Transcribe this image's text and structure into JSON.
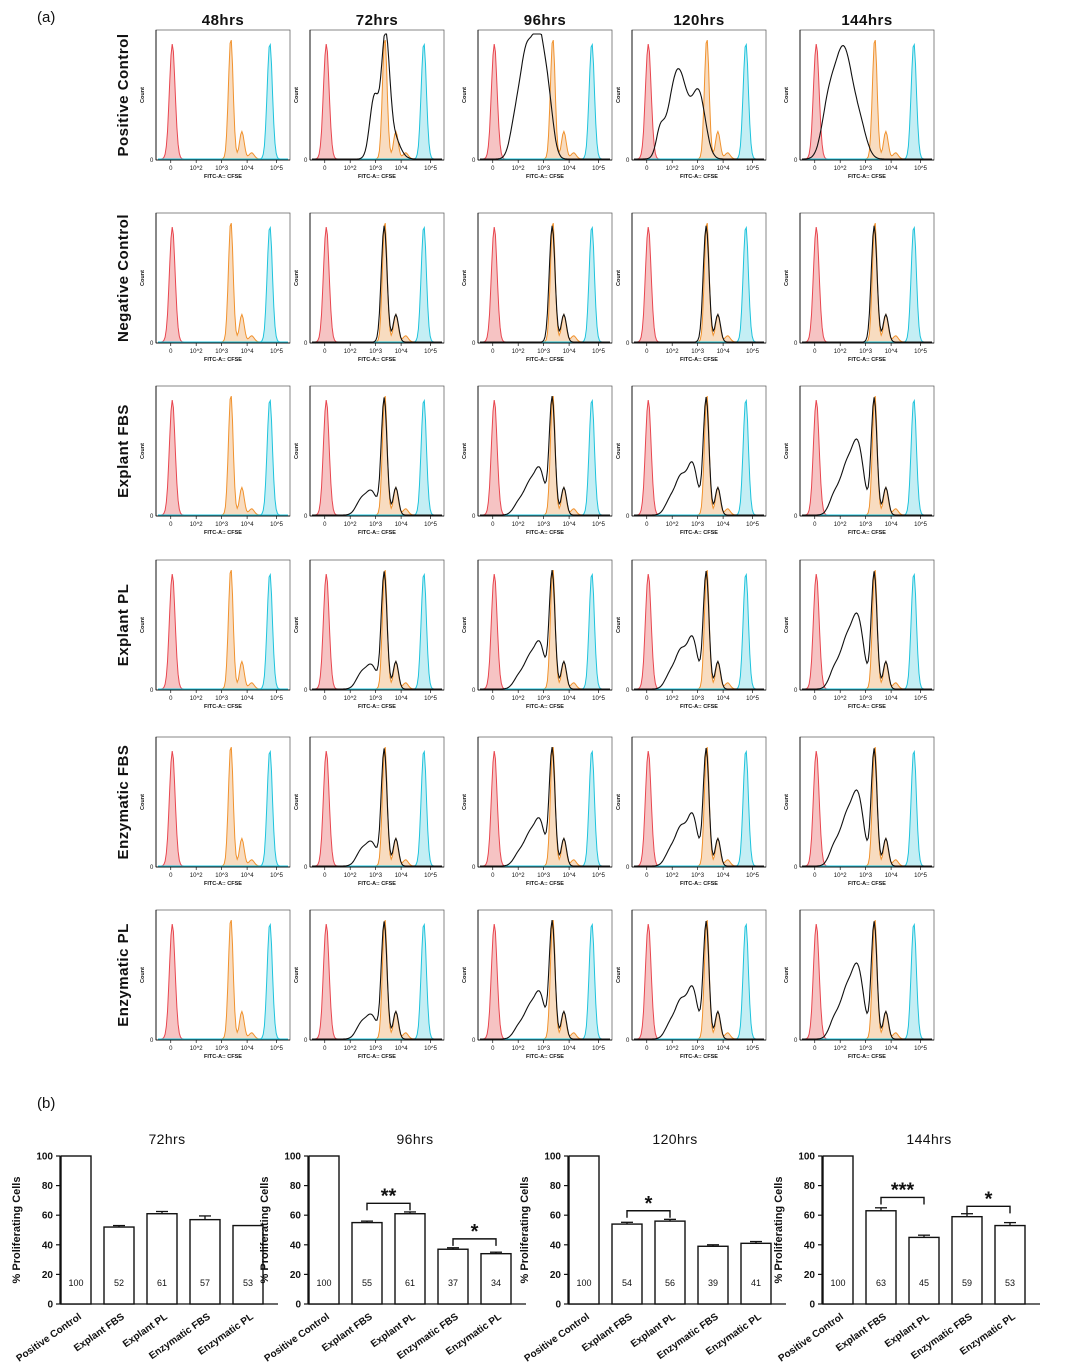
{
  "panel_a_label": "(a)",
  "panel_b_label": "(b)",
  "histograms": {
    "columns": [
      "48hrs",
      "72hrs",
      "96hrs",
      "120hrs",
      "144hrs"
    ],
    "rows": [
      "Positive Control",
      "Negative Control",
      "Explant FBS",
      "Explant PL",
      "Enzymatic FBS",
      "Enzymatic PL"
    ],
    "y_axis_label": "Count",
    "x_axis_label": "FITC-A:: CFSE",
    "x_ticks": [
      "0",
      "10^2",
      "10^3",
      "10^4",
      "10^5"
    ],
    "y_zero": "0",
    "colors": {
      "unstained": "#e8464f",
      "generation_zero": "#f0922e",
      "reference": "#1ec3dc",
      "sample": "#111111",
      "unstained_fill": "#f6c3c3",
      "generation_zero_fill": "#f8dcc0",
      "reference_fill": "#c4eef4"
    }
  },
  "chart_data": [
    {
      "type": "bar",
      "title": "72hrs",
      "ylabel": "% Proliferating Cells",
      "ylim": [
        0,
        100
      ],
      "yticks": [
        0,
        20,
        40,
        60,
        80,
        100
      ],
      "categories": [
        "Positive Control",
        "Explant FBS",
        "Explant PL",
        "Enzymatic FBS",
        "Enzymatic PL"
      ],
      "values": [
        100,
        52,
        61,
        57,
        53
      ],
      "labels": [
        "100",
        "52",
        "61",
        "57",
        "53"
      ],
      "error": [
        0,
        1,
        1.5,
        2.5,
        0
      ],
      "significance": []
    },
    {
      "type": "bar",
      "title": "96hrs",
      "ylabel": "% Proliferating Cells",
      "ylim": [
        0,
        100
      ],
      "yticks": [
        0,
        20,
        40,
        60,
        80,
        100
      ],
      "categories": [
        "Positive Control",
        "Explant FBS",
        "Explant PL",
        "Enzymatic FBS",
        "Enzymatic PL"
      ],
      "values": [
        100,
        55,
        61,
        37,
        34
      ],
      "labels": [
        "100",
        "55",
        "61",
        "37",
        "34"
      ],
      "error": [
        0,
        1,
        1.2,
        1,
        1
      ],
      "significance": [
        {
          "from": 1,
          "to": 2,
          "label": "**",
          "y": 68
        },
        {
          "from": 3,
          "to": 4,
          "label": "*",
          "y": 44
        }
      ]
    },
    {
      "type": "bar",
      "title": "120hrs",
      "ylabel": "% Proliferating Cells",
      "ylim": [
        0,
        100
      ],
      "yticks": [
        0,
        20,
        40,
        60,
        80,
        100
      ],
      "categories": [
        "Positive Control",
        "Explant FBS",
        "Explant PL",
        "Enzymatic FBS",
        "Enzymatic PL"
      ],
      "values": [
        100,
        54,
        56,
        39,
        41
      ],
      "labels": [
        "100",
        "54",
        "56",
        "39",
        "41"
      ],
      "error": [
        0,
        1.2,
        1.2,
        1,
        1.2
      ],
      "significance": [
        {
          "from": 1,
          "to": 2,
          "label": "*",
          "y": 63
        }
      ]
    },
    {
      "type": "bar",
      "title": "144hrs",
      "ylabel": "% Proliferating Cells",
      "ylim": [
        0,
        100
      ],
      "yticks": [
        0,
        20,
        40,
        60,
        80,
        100
      ],
      "categories": [
        "Positive Control",
        "Explant FBS",
        "Explant PL",
        "Enzymatic FBS",
        "Enzymatic PL"
      ],
      "values": [
        100,
        63,
        45,
        59,
        53
      ],
      "labels": [
        "100",
        "63",
        "45",
        "59",
        "53"
      ],
      "error": [
        0,
        2,
        1.5,
        2,
        2
      ],
      "significance": [
        {
          "from": 1,
          "to": 2,
          "label": "***",
          "y": 72
        },
        {
          "from": 3,
          "to": 4,
          "label": "*",
          "y": 66
        }
      ]
    }
  ]
}
